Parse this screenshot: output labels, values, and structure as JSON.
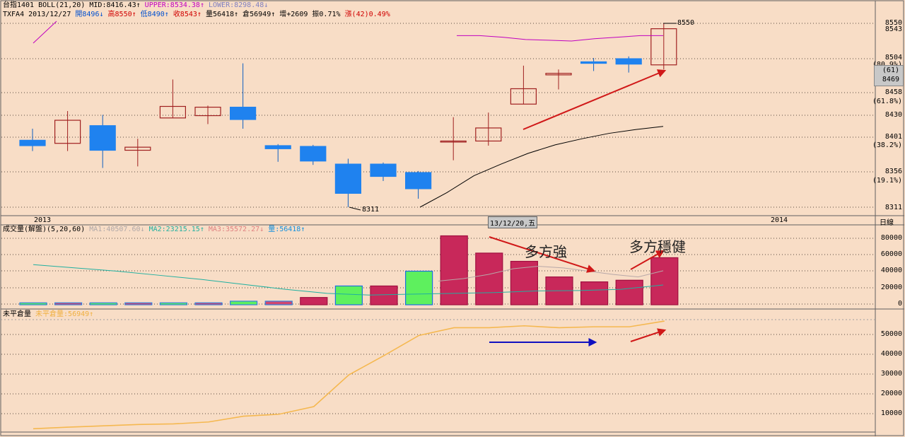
{
  "price_header": {
    "line1": {
      "symbol": "台指1401",
      "boll": "BOLL(21,20)",
      "mid": "MID:8416.43↑",
      "upper": "UPPER:8534.38↑",
      "lower": "LOWER:8298.48↓"
    },
    "line2": {
      "code": "TXFA4",
      "date": "2013/12/27",
      "open": "開8496↓",
      "high": "高8550↑",
      "low": "低8490↑",
      "close": "收8543↑",
      "volume": "量56418↑",
      "oi": "倉56949↑",
      "oi_change": "增+2609",
      "amplitude": "振0.71%",
      "change": "漲(42)0.49%"
    }
  },
  "price_axis": {
    "labels": [
      "8550",
      "8543",
      "8504",
      "(80.9%)",
      "(61)",
      "8469",
      "8458",
      "(61.8%)",
      "8430",
      "8401",
      "(38.2%)",
      "8356",
      "(19.1%)",
      "8311"
    ]
  },
  "date_axis": {
    "start": "2013",
    "cursor": "13/12/20,五",
    "end": "2014",
    "period": "日線"
  },
  "volume_header": {
    "title": "成交量(解盤)(5,20,60)",
    "ma1": "MA1:40507.60↓",
    "ma2": "MA2:23215.15↑",
    "ma3": "MA3:35572.27↓",
    "vol": "量:56418↑"
  },
  "volume_axis": {
    "labels": [
      "80000",
      "60000",
      "40000",
      "20000",
      "0"
    ]
  },
  "oi_header": {
    "title": "未平倉量",
    "oi": "未平倉量:56949↑"
  },
  "oi_axis": {
    "labels": [
      "50000",
      "40000",
      "30000",
      "20000",
      "10000"
    ]
  },
  "annotations": {
    "strong": "多方強",
    "steady": "多方穩健",
    "high_mark": "8550",
    "low_mark": "8311"
  },
  "colors": {
    "background": "#f8ddc6",
    "up": "#c0203a",
    "down": "#1f82ef",
    "upper_band": "#c000c0",
    "lower_band": "#000000",
    "vol_up": "#c8285a",
    "vol_green": "#5ef05e",
    "oi_line": "#f5b850",
    "arrow_red": "#d01818",
    "arrow_blue": "#1010c0"
  },
  "chart_data": [
    {
      "type": "candlestick",
      "title": "台指1401 BOLL(21,20)",
      "ylim": [
        8300,
        8560
      ],
      "candles": [
        {
          "o": 8398,
          "h": 8413,
          "l": 8384,
          "c": 8391
        },
        {
          "o": 8394,
          "h": 8436,
          "l": 8384,
          "c": 8424
        },
        {
          "o": 8417,
          "h": 8431,
          "l": 8362,
          "c": 8385
        },
        {
          "o": 8385,
          "h": 8400,
          "l": 8364,
          "c": 8389
        },
        {
          "o": 8427,
          "h": 8477,
          "l": 8427,
          "c": 8442
        },
        {
          "o": 8430,
          "h": 8443,
          "l": 8419,
          "c": 8441
        },
        {
          "o": 8441,
          "h": 8498,
          "l": 8413,
          "c": 8425
        },
        {
          "o": 8391,
          "h": 8393,
          "l": 8370,
          "c": 8387
        },
        {
          "o": 8390,
          "h": 8392,
          "l": 8366,
          "c": 8371
        },
        {
          "o": 8367,
          "h": 8374,
          "l": 8311,
          "c": 8329
        },
        {
          "o": 8367,
          "h": 8369,
          "l": 8345,
          "c": 8351
        },
        {
          "o": 8356,
          "h": 8358,
          "l": 8322,
          "c": 8335
        },
        {
          "o": 8397,
          "h": 8428,
          "l": 8372,
          "c": 8397
        },
        {
          "o": 8397,
          "h": 8434,
          "l": 8391,
          "c": 8414
        },
        {
          "o": 8445,
          "h": 8495,
          "l": 8445,
          "c": 8465
        },
        {
          "o": 8483,
          "h": 8490,
          "l": 8464,
          "c": 8485
        },
        {
          "o": 8500,
          "h": 8505,
          "l": 8488,
          "c": 8498
        },
        {
          "o": 8504,
          "h": 8507,
          "l": 8486,
          "c": 8497
        },
        {
          "o": 8496,
          "h": 8550,
          "l": 8490,
          "c": 8543
        }
      ],
      "upper_band": [
        8534,
        8534,
        8532,
        8529,
        8528,
        8527,
        8530,
        8532,
        8534,
        8534
      ],
      "lower_band": [
        8311,
        8330,
        8352,
        8367,
        8381,
        8392,
        8400,
        8407,
        8412,
        8416
      ]
    },
    {
      "type": "bar",
      "title": "成交量(解盤)(5,20,60)",
      "ylim": [
        0,
        90000
      ],
      "values": [
        1500,
        1500,
        1500,
        1500,
        1500,
        1500,
        3500,
        3500,
        8000,
        22000,
        22000,
        40000,
        83000,
        62000,
        52000,
        33000,
        27000,
        29000,
        56418
      ],
      "ma1": [
        28000,
        31000,
        36000,
        43000,
        46000,
        44000,
        40000,
        36000,
        33000,
        40507.6
      ],
      "ma2": [
        48000,
        44000,
        40000,
        35000,
        30000,
        24000,
        18000,
        13000,
        11000,
        12000,
        13000,
        14000,
        16000,
        16500,
        18000,
        23215.15
      ]
    },
    {
      "type": "line",
      "title": "未平倉量",
      "ylim": [
        0,
        58000
      ],
      "values": [
        1000,
        1800,
        2500,
        3200,
        3500,
        4500,
        7500,
        8500,
        12500,
        29000,
        39000,
        49500,
        53500,
        53500,
        54500,
        53500,
        54000,
        54000,
        56949
      ]
    }
  ]
}
